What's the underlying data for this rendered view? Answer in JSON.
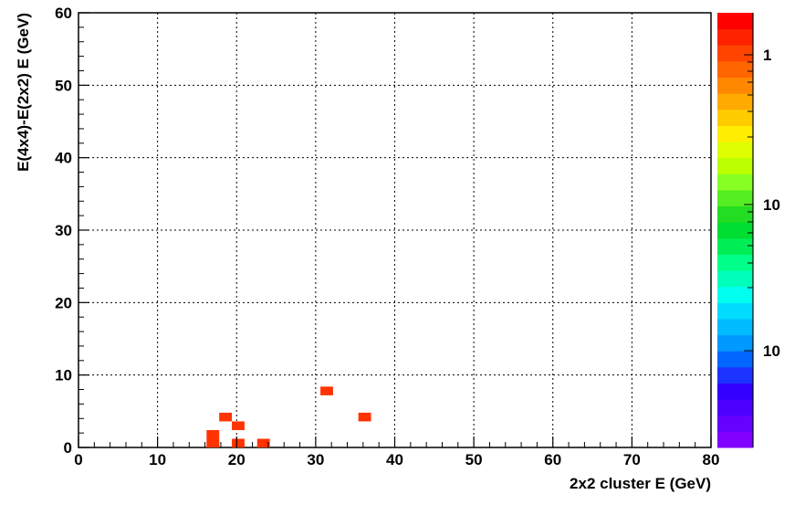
{
  "chart_data": {
    "type": "heatmap",
    "xlabel": "2x2 cluster E (GeV)",
    "ylabel": "E(4x4)-E(2x2)  E (GeV)",
    "xlim": [
      0,
      80
    ],
    "ylim": [
      0,
      60
    ],
    "x_ticks": [
      0,
      10,
      20,
      30,
      40,
      50,
      60,
      70,
      80
    ],
    "y_ticks": [
      0,
      10,
      20,
      30,
      40,
      50,
      60
    ],
    "grid": true,
    "bin_width_x": 1.6,
    "bin_height_y": 1.2,
    "cells": [
      {
        "x": 17.0,
        "y": 0.6,
        "value": 1,
        "color": "#ff3300"
      },
      {
        "x": 17.0,
        "y": 1.8,
        "value": 1,
        "color": "#ff3300"
      },
      {
        "x": 18.6,
        "y": 4.2,
        "value": 1,
        "color": "#ff3300"
      },
      {
        "x": 20.2,
        "y": 0.6,
        "value": 1,
        "color": "#ff3300"
      },
      {
        "x": 20.2,
        "y": 3.0,
        "value": 1,
        "color": "#ff3300"
      },
      {
        "x": 23.4,
        "y": 0.6,
        "value": 1,
        "color": "#ff3300"
      },
      {
        "x": 31.4,
        "y": 7.8,
        "value": 1,
        "color": "#ff3300"
      },
      {
        "x": 36.2,
        "y": 4.2,
        "value": 1,
        "color": "#ff3300"
      }
    ],
    "colorbar": {
      "labels": [
        "1",
        "10",
        "10"
      ],
      "colors": [
        "#7f00ff",
        "#6600ff",
        "#4d00ff",
        "#3300ff",
        "#1a33ff",
        "#0066ff",
        "#0099ff",
        "#00bbff",
        "#00ddff",
        "#00ffee",
        "#00ffbb",
        "#00ff88",
        "#00ee55",
        "#00dd33",
        "#22dd22",
        "#55ee22",
        "#88ff22",
        "#bbff00",
        "#ddff00",
        "#ffee00",
        "#ffcc00",
        "#ffaa00",
        "#ff8800",
        "#ff6600",
        "#ff4400",
        "#ff2200",
        "#ff0000"
      ]
    }
  }
}
